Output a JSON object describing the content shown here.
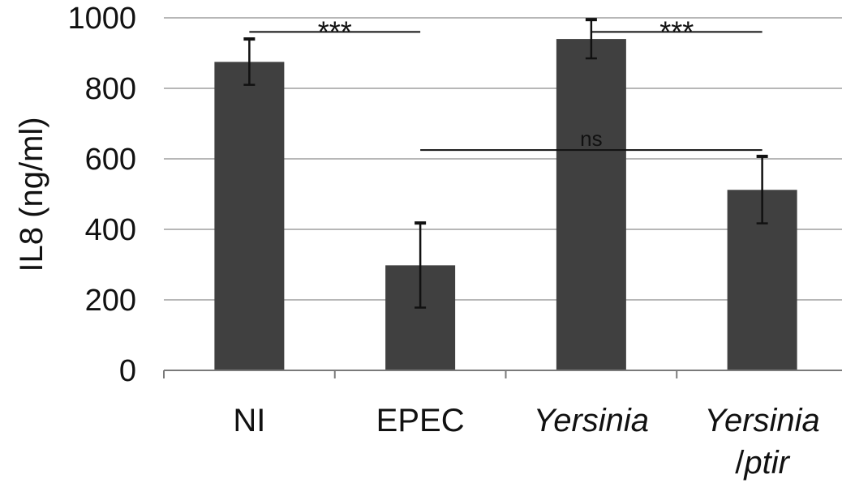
{
  "chart_data": {
    "type": "bar",
    "categories": [
      {
        "line1": "NI",
        "line2": "",
        "italic1": false,
        "italic2": false
      },
      {
        "line1": "EPEC",
        "line2": "",
        "italic1": false,
        "italic2": false
      },
      {
        "line1": "Yersinia",
        "line2": "",
        "italic1": true,
        "italic2": false
      },
      {
        "line1": "Yersinia",
        "line2": "/ptir",
        "italic1": true,
        "italic2": true
      }
    ],
    "values": [
      875,
      298,
      940,
      512
    ],
    "errors": [
      65,
      120,
      55,
      95
    ],
    "ylabel": "IL8 (ng/ml)",
    "ylim": [
      0,
      1000
    ],
    "yticks": [
      "0",
      "200",
      "400",
      "600",
      "800",
      "1000"
    ],
    "grid": true,
    "bar_color": "#404040",
    "annotations": [
      {
        "label": "***",
        "from": 0,
        "to": 1,
        "y": 960
      },
      {
        "label": "***",
        "from": 2,
        "to": 3,
        "y": 960
      },
      {
        "label": "ns",
        "from": 1,
        "to": 3,
        "y": 625
      }
    ]
  }
}
